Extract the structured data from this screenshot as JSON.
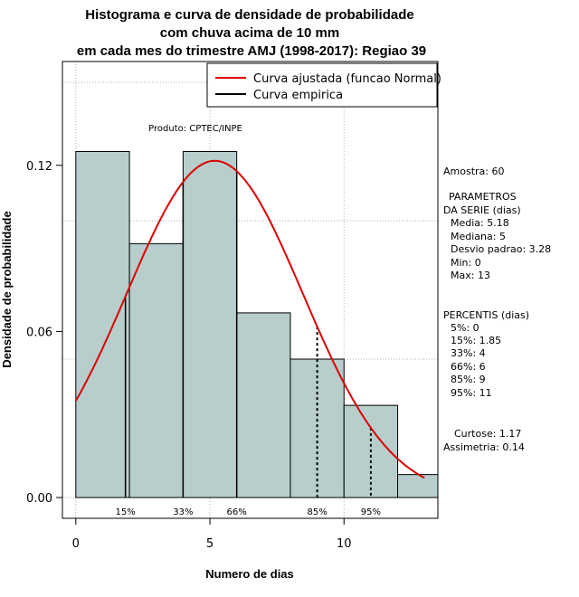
{
  "chart_data": {
    "type": "histogram",
    "title_lines": [
      "Histograma e curva de densidade de probabilidade",
      "com chuva acima de 10 mm",
      "em cada mes do trimestre AMJ (1998-2017): Regiao 39"
    ],
    "xlabel": "Numero de dias",
    "ylabel": "Densidade de probabilidade",
    "xlim": [
      -0.5,
      13.5
    ],
    "ylim": [
      -0.0075,
      0.1575
    ],
    "x_ticks": [
      0,
      5,
      10
    ],
    "y_ticks": [
      0.0,
      0.06,
      0.12
    ],
    "y_tick_labels": [
      "0.00",
      "0.06",
      "0.12"
    ],
    "grid_x": [
      0,
      5,
      10
    ],
    "grid_y": [
      0.0,
      0.05,
      0.1,
      0.15
    ],
    "bins": [
      {
        "start": 0,
        "end": 2,
        "density": 0.125
      },
      {
        "start": 2,
        "end": 4,
        "density": 0.0917
      },
      {
        "start": 4,
        "end": 6,
        "density": 0.125
      },
      {
        "start": 6,
        "end": 8,
        "density": 0.0667
      },
      {
        "start": 8,
        "end": 10,
        "density": 0.05
      },
      {
        "start": 10,
        "end": 12,
        "density": 0.0333
      },
      {
        "start": 12,
        "end": 14,
        "density": 0.0083
      }
    ],
    "normal_curve": {
      "mean": 5.18,
      "sd": 3.28,
      "x_from": 0,
      "x_to": 13
    },
    "percentile_lines": [
      {
        "label": "15%",
        "x": 1.85,
        "style": "solid"
      },
      {
        "label": "33%",
        "x": 4,
        "style": "solid"
      },
      {
        "label": "66%",
        "x": 6,
        "style": "solid"
      },
      {
        "label": "85%",
        "x": 9,
        "style": "dashed"
      },
      {
        "label": "95%",
        "x": 11,
        "style": "dashed"
      }
    ],
    "legend": [
      {
        "label": "Curva ajustada (funcao Normal)",
        "color": "#dd0000"
      },
      {
        "label": "Curva empirica",
        "color": "#000000"
      }
    ],
    "annotation": "Produto: CPTEC/INPE",
    "colors": {
      "bar_fill": "#b7cecd",
      "curve": "#dd0000",
      "grid": "#b0b0b0"
    }
  },
  "side_panel": {
    "sample": "Amostra: 60",
    "params_title_1": "PARAMETROS",
    "params_title_2": "DA SERIE (dias)",
    "params": [
      "Media: 5.18",
      "Mediana: 5",
      "Desvio padrao: 3.28",
      "Min: 0",
      "Max: 13"
    ],
    "percentiles_title": "PERCENTIS (dias)",
    "percentiles": [
      "5%: 0",
      "15%: 1.85",
      "33%: 4",
      "66%: 6",
      "85%: 9",
      "95%: 11"
    ],
    "curtose": "Curtose: 1.17",
    "assimetria": "Assimetria: 0.14"
  }
}
